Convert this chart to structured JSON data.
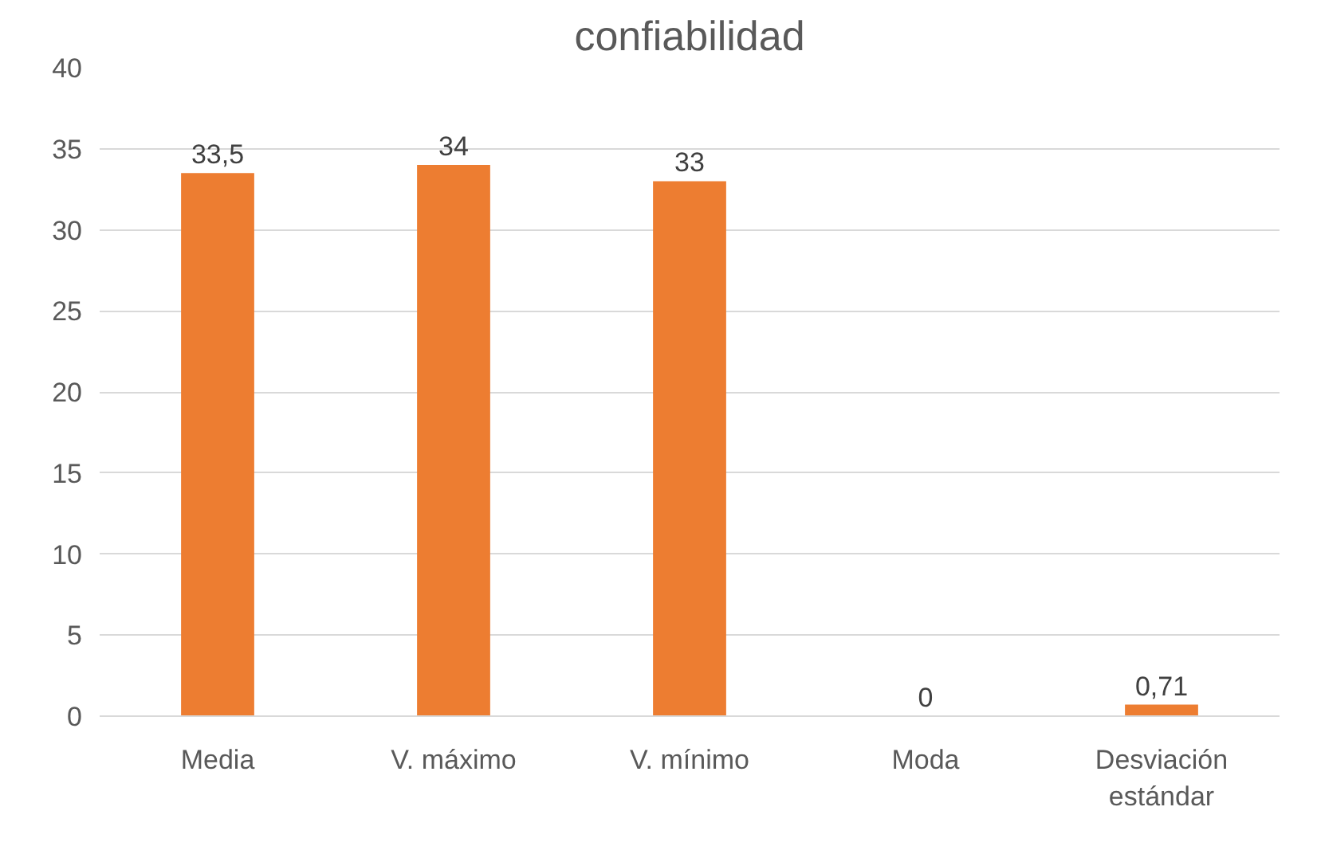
{
  "chart_data": {
    "type": "bar",
    "title": "confiabilidad",
    "categories": [
      "Media",
      "V. máximo",
      "V. mínimo",
      "Moda",
      "Desviación estándar"
    ],
    "values": [
      33.5,
      34,
      33,
      0,
      0.71
    ],
    "value_labels": [
      "33,5",
      "34",
      "33",
      "0",
      "0,71"
    ],
    "color": "#ed7d31",
    "ylim": [
      0,
      40
    ],
    "yticks": [
      0,
      5,
      10,
      15,
      20,
      25,
      30,
      35,
      40
    ],
    "grid": "y"
  }
}
